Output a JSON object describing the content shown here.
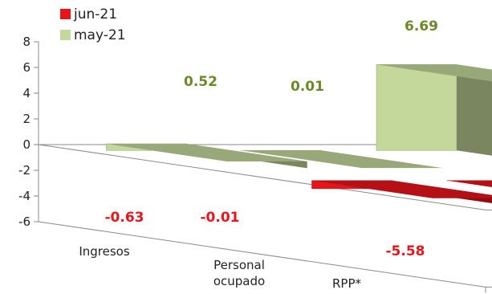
{
  "chart_data": {
    "type": "bar",
    "categories": [
      "Ingresos",
      "Personal|ocupado",
      "RPP*"
    ],
    "series": [
      {
        "name": "jun-21",
        "values": [
          -0.63,
          -0.01,
          -5.58
        ],
        "labels": [
          "-0.63",
          "-0.01",
          "-5.58"
        ],
        "color": "#e8141b",
        "label_color": "#e8141b"
      },
      {
        "name": "may-21",
        "values": [
          0.52,
          0.01,
          6.69
        ],
        "labels": [
          "0.52",
          "0.01",
          "6.69"
        ],
        "color": "#c3d89a",
        "label_color": "#6a8a2a"
      }
    ],
    "yticks": [
      "8",
      "6",
      "4",
      "2",
      "0",
      "-2",
      "-4",
      "-6"
    ],
    "ylim": [
      -6,
      8
    ],
    "grid": false,
    "legend": "top-left",
    "title": "",
    "xlabel": "",
    "ylabel": ""
  }
}
